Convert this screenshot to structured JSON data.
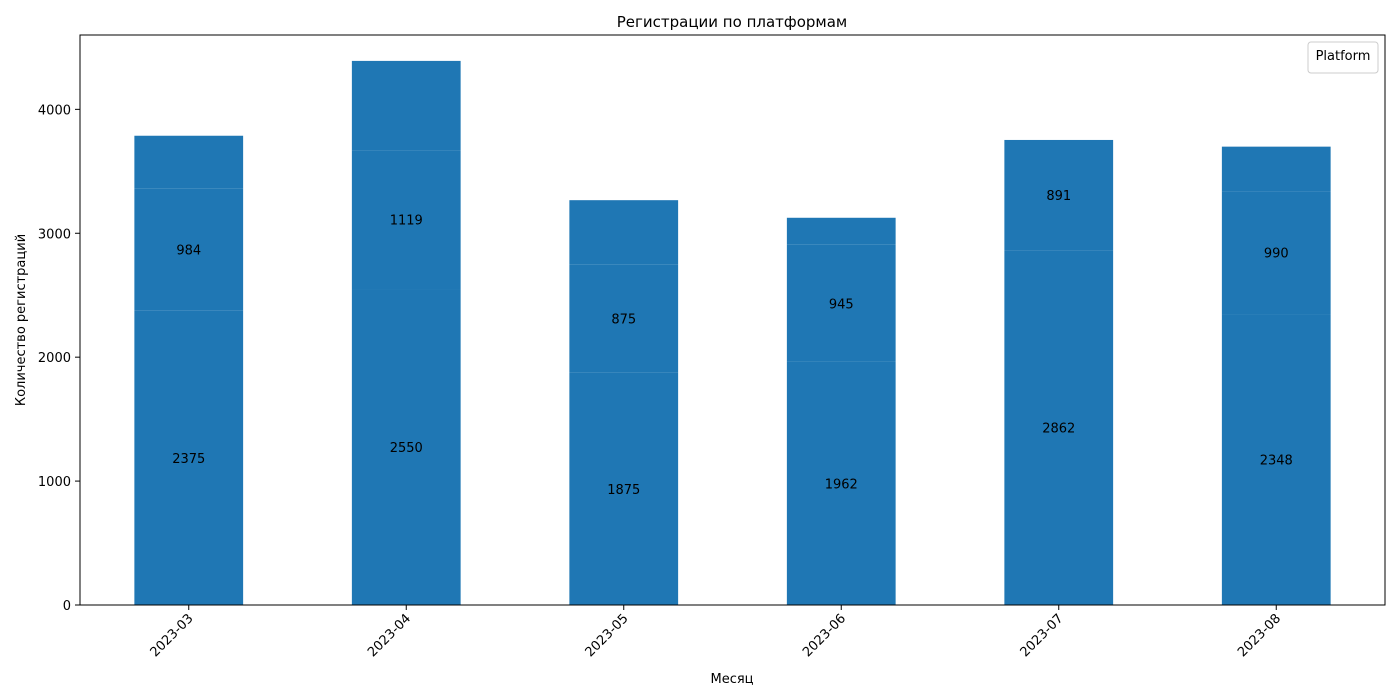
{
  "chart_data": {
    "type": "bar",
    "stacked": true,
    "title": "Регистрации по платформам",
    "xlabel": "Месяц",
    "ylabel": "Количество регистраций",
    "categories": [
      "2023-03",
      "2023-04",
      "2023-05",
      "2023-06",
      "2023-07",
      "2023-08"
    ],
    "series": [
      {
        "values": [
          2375,
          2550,
          1875,
          1962,
          2862,
          2348
        ]
      },
      {
        "values": [
          984,
          1119,
          875,
          945,
          891,
          990
        ]
      },
      {
        "values": [
          428,
          722,
          517,
          218,
          0,
          361
        ]
      }
    ],
    "segment_labels": [
      [
        "2375",
        "2550",
        "1875",
        "1962",
        "2862",
        "2348"
      ],
      [
        "984",
        "1119",
        "875",
        "945",
        "891",
        "990"
      ]
    ],
    "ylim": [
      0,
      4600
    ],
    "yticks": [
      0,
      1000,
      2000,
      3000,
      4000
    ],
    "bar_color": "#1f77b4",
    "grid": false,
    "legend": {
      "title": "Platform",
      "placement": "top-right",
      "entries": []
    },
    "xtick_rotation": 45
  }
}
